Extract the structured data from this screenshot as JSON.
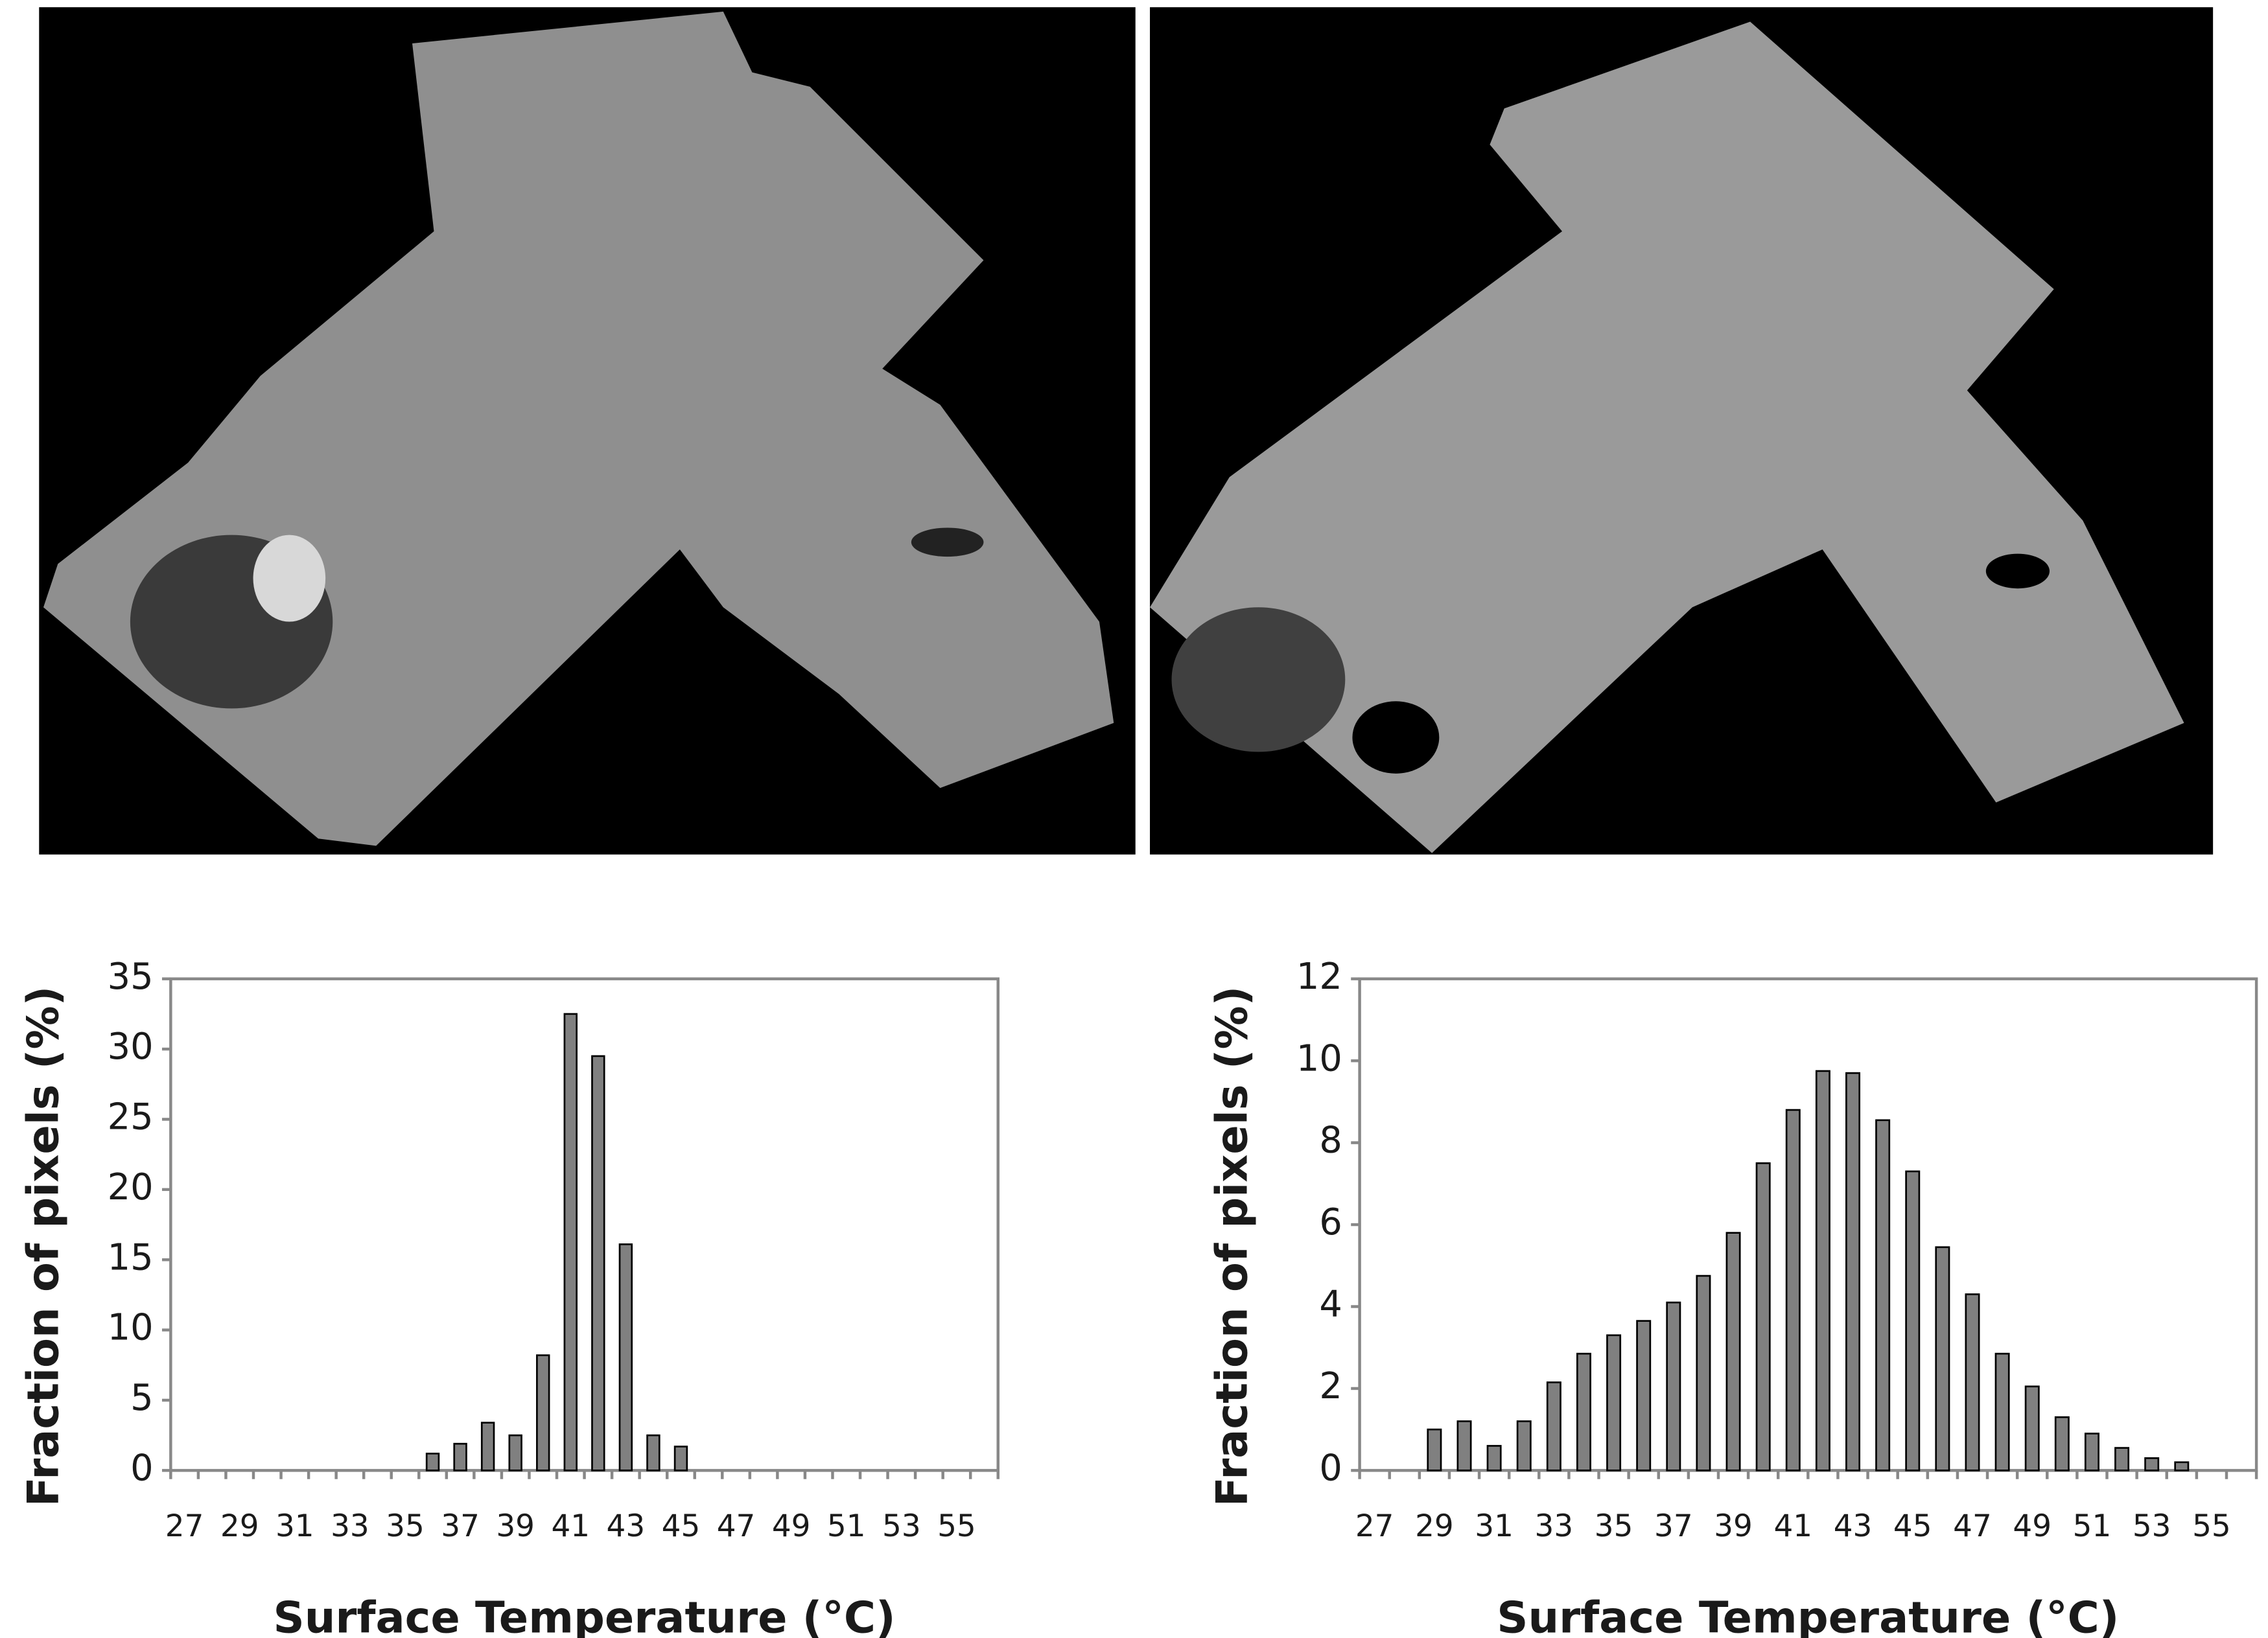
{
  "chart_data": [
    {
      "type": "bar",
      "x_label": "Surface Temperature (°C)",
      "y_label": "Fraction of pixels (%)",
      "categories": [
        27,
        null,
        29,
        null,
        31,
        null,
        33,
        null,
        35,
        null,
        37,
        null,
        39,
        null,
        41,
        null,
        43,
        null,
        45,
        null,
        47,
        null,
        49,
        null,
        51,
        null,
        53,
        null,
        55,
        null
      ],
      "values": [
        0,
        0,
        0,
        0,
        0,
        0,
        0,
        0,
        0,
        1.2,
        1.9,
        3.4,
        2.5,
        8.2,
        32.5,
        29.5,
        16.1,
        2.5,
        1.7,
        0,
        0,
        0,
        0,
        0,
        0,
        0,
        0,
        0,
        0,
        0
      ],
      "color": "#808080",
      "ylim": [
        0,
        35
      ],
      "yticks": [
        0,
        5,
        10,
        15,
        20,
        25,
        30,
        35
      ]
    },
    {
      "type": "bar",
      "x_label": "Surface Temperature (°C)",
      "y_label": "Fraction of pixels (%)",
      "categories": [
        27,
        null,
        29,
        null,
        31,
        null,
        33,
        null,
        35,
        null,
        37,
        null,
        39,
        null,
        41,
        null,
        43,
        null,
        45,
        null,
        47,
        null,
        49,
        null,
        51,
        null,
        53,
        null,
        55,
        null
      ],
      "values": [
        0,
        0,
        1.0,
        1.2,
        0.6,
        1.2,
        2.15,
        2.85,
        3.3,
        3.65,
        4.1,
        4.75,
        5.8,
        7.5,
        8.8,
        9.75,
        9.7,
        8.55,
        7.3,
        5.45,
        4.3,
        2.85,
        2.05,
        1.3,
        0.9,
        0.55,
        0.3,
        0.2,
        0,
        0
      ],
      "color": "#808080",
      "ylim": [
        0,
        12
      ],
      "yticks": [
        0,
        2,
        4,
        6,
        8,
        10,
        12
      ]
    }
  ]
}
